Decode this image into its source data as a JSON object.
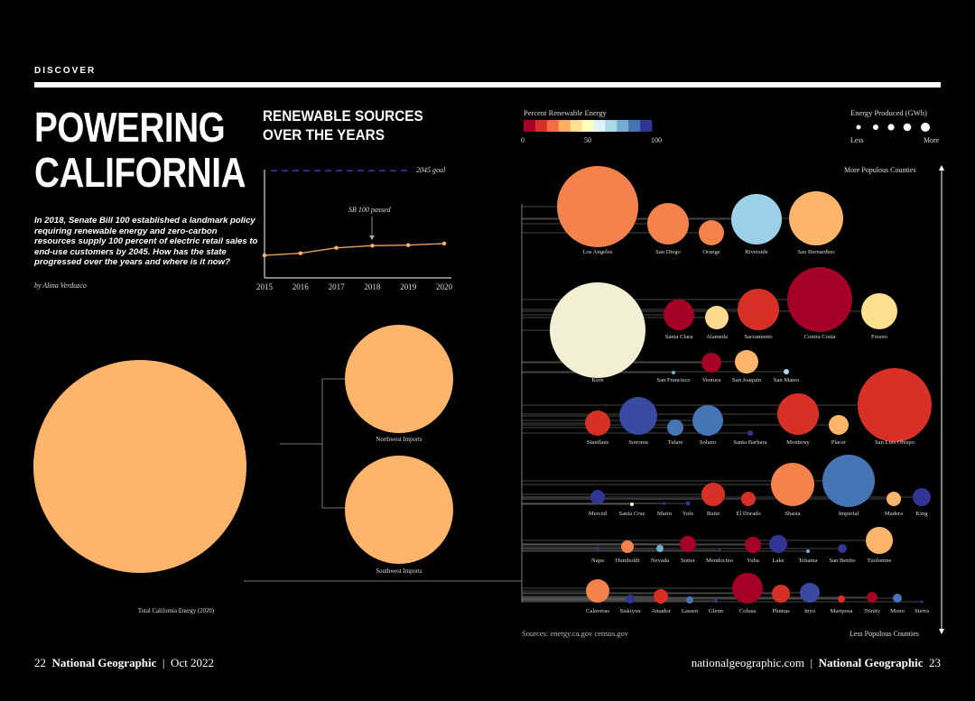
{
  "header": {
    "kicker": "DISCOVER"
  },
  "title": {
    "line1": "POWERING",
    "line2": "CALIFORNIA"
  },
  "dek": "In 2018, Senate Bill 100 established a landmark policy requiring renewable energy and zero-carbon resources supply 100 percent of electric retail sales to end-use customers by 2045. How has the state progressed over the years and where is it now?",
  "byline": "by Alina Verduzco",
  "line_chart": {
    "title_line1": "RENEWABLE SOURCES",
    "title_line2": "OVER THE YEARS",
    "goal_label": "2045 goal",
    "annotation": "SB 100 passed",
    "x": [
      "2015",
      "2016",
      "2017",
      "2018",
      "2019",
      "2020"
    ],
    "y": [
      21,
      23,
      28,
      30,
      30.5,
      32
    ],
    "goal_value": 100,
    "ylim": [
      0,
      110
    ]
  },
  "color_legend": {
    "title": "Percent Renewable Energy",
    "ticks": [
      "0",
      "50",
      "100"
    ],
    "colors": [
      "#a50026",
      "#d73027",
      "#f46d43",
      "#fdae61",
      "#fee090",
      "#ffffbf",
      "#e0f3f8",
      "#abd9e9",
      "#74add1",
      "#4575b4",
      "#313695"
    ]
  },
  "size_legend": {
    "title": "Energy Produced (GWh)",
    "less": "Less",
    "more": "More"
  },
  "axis_labels": {
    "top": "More Populous Counties",
    "bottom": "Less Populous Counties"
  },
  "breakdown": {
    "total_label": "Total California Energy (2020)",
    "northwest_label": "Northwest Imports",
    "southwest_label": "Southwest Imports",
    "color": "#fdb56b"
  },
  "counties": [
    {
      "name": "Los Angeles",
      "color": "#f4824c",
      "row": 1
    },
    {
      "name": "San Diego",
      "color": "#f4824c",
      "row": 1
    },
    {
      "name": "Orange",
      "color": "#f4824c",
      "row": 1
    },
    {
      "name": "Riverside",
      "color": "#9ecfe8",
      "row": 1
    },
    {
      "name": "San Bernardino",
      "color": "#fdb56b",
      "row": 1
    },
    {
      "name": "Kern",
      "color": "#f2efd4",
      "row": 2
    },
    {
      "name": "Santa Clara",
      "color": "#a50026",
      "row": 2
    },
    {
      "name": "Alameda",
      "color": "#fed98e",
      "row": 2
    },
    {
      "name": "Sacramento",
      "color": "#d73027",
      "row": 2
    },
    {
      "name": "Contra Costa",
      "color": "#a50026",
      "row": 2
    },
    {
      "name": "Fresno",
      "color": "#fee090",
      "row": 2
    },
    {
      "name": "San Francisco",
      "color": "#74add1",
      "row": 3
    },
    {
      "name": "Ventura",
      "color": "#a50026",
      "row": 3
    },
    {
      "name": "San Joaquin",
      "color": "#fdb56b",
      "row": 3
    },
    {
      "name": "San Mateo",
      "color": "#abd9e9",
      "row": 3
    },
    {
      "name": "Stanilaus",
      "color": "#d73027",
      "row": 4
    },
    {
      "name": "Sonoma",
      "color": "#3a4aa0",
      "row": 4
    },
    {
      "name": "Tulare",
      "color": "#4575b4",
      "row": 4
    },
    {
      "name": "Solano",
      "color": "#4575b4",
      "row": 4
    },
    {
      "name": "Santa Barbara",
      "color": "#313695",
      "row": 4
    },
    {
      "name": "Monterey",
      "color": "#d73027",
      "row": 4
    },
    {
      "name": "Placer",
      "color": "#fdb56b",
      "row": 4
    },
    {
      "name": "San Luis Obispo",
      "color": "#d73027",
      "row": 4
    },
    {
      "name": "Merced",
      "color": "#313695",
      "row": 5
    },
    {
      "name": "Santa Cruz",
      "color": "#ffffbf",
      "row": 5
    },
    {
      "name": "Marin",
      "color": "#313695",
      "row": 5
    },
    {
      "name": "Yolo",
      "color": "#313695",
      "row": 5
    },
    {
      "name": "Butte",
      "color": "#d73027",
      "row": 5
    },
    {
      "name": "El Dorado",
      "color": "#d73027",
      "row": 5
    },
    {
      "name": "Shasta",
      "color": "#f4824c",
      "row": 5
    },
    {
      "name": "Imperial",
      "color": "#4575b4",
      "row": 5
    },
    {
      "name": "Madera",
      "color": "#fdb56b",
      "row": 5
    },
    {
      "name": "King",
      "color": "#313695",
      "row": 5
    },
    {
      "name": "Napa",
      "color": "#313695",
      "row": 6
    },
    {
      "name": "Humboldt",
      "color": "#f4824c",
      "row": 6
    },
    {
      "name": "Nevada",
      "color": "#74add1",
      "row": 6
    },
    {
      "name": "Sutter",
      "color": "#a50026",
      "row": 6
    },
    {
      "name": "Mendocino",
      "color": "#313695",
      "row": 6
    },
    {
      "name": "Yuba",
      "color": "#a50026",
      "row": 6
    },
    {
      "name": "Lake",
      "color": "#313695",
      "row": 6
    },
    {
      "name": "Tehama",
      "color": "#74add1",
      "row": 6
    },
    {
      "name": "San Benito",
      "color": "#313695",
      "row": 6
    },
    {
      "name": "Tuolumne",
      "color": "#fdb56b",
      "row": 6
    },
    {
      "name": "Calaveras",
      "color": "#f4824c",
      "row": 7
    },
    {
      "name": "Siskiyou",
      "color": "#313695",
      "row": 7
    },
    {
      "name": "Amador",
      "color": "#d73027",
      "row": 7
    },
    {
      "name": "Lassen",
      "color": "#4575b4",
      "row": 7
    },
    {
      "name": "Glenn",
      "color": "#313695",
      "row": 7
    },
    {
      "name": "Colusa",
      "color": "#a50026",
      "row": 7
    },
    {
      "name": "Plumas",
      "color": "#d73027",
      "row": 7
    },
    {
      "name": "Inyo",
      "color": "#3a4aa0",
      "row": 7
    },
    {
      "name": "Mariposa",
      "color": "#d73027",
      "row": 7
    },
    {
      "name": "Trinity",
      "color": "#a50026",
      "row": 7
    },
    {
      "name": "Mono",
      "color": "#4575b4",
      "row": 7
    },
    {
      "name": "Sierra",
      "color": "#313695",
      "row": 7
    }
  ],
  "sources": "Sources: energy.ca.gov census.gov",
  "footer": {
    "left_page": "22",
    "left_brand": "National Geographic",
    "left_date": "Oct 2022",
    "right_site": "nationalgeographic.com",
    "right_brand": "National Geographic",
    "right_page": "23"
  }
}
